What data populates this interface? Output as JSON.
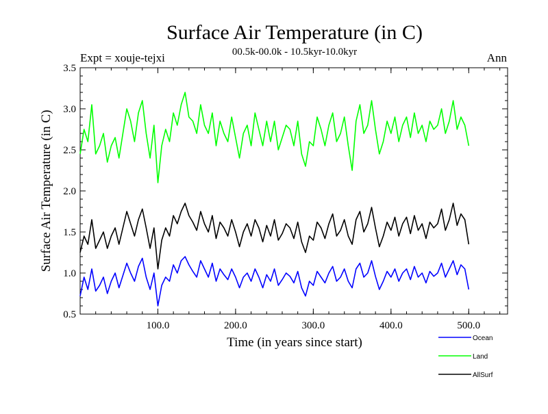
{
  "chart_data": {
    "type": "line",
    "title": "Surface Air Temperature (in C)",
    "subtitle": "00.5k-00.0k - 10.5kyr-10.0kyr",
    "experiment": "Expt = xouje-tejxi",
    "season": "Ann",
    "xlabel": "Time (in years since start)",
    "ylabel": "Surface Air Temperature (in C)",
    "xlim": [
      0,
      550
    ],
    "ylim": [
      0.5,
      3.5
    ],
    "xticks": [
      100,
      200,
      300,
      400,
      500
    ],
    "xtick_labels": [
      "100.0",
      "200.0",
      "300.0",
      "400.0",
      "500.0"
    ],
    "yticks": [
      0.5,
      1.0,
      1.5,
      2.0,
      2.5,
      3.0,
      3.5
    ],
    "ytick_labels": [
      "0.5",
      "1.0",
      "1.5",
      "2.0",
      "2.5",
      "3.0",
      "3.5"
    ],
    "legend_position": "bottom-right",
    "series": [
      {
        "name": "Ocean",
        "color": "#0000ff",
        "x": [
          0,
          5,
          10,
          15,
          20,
          25,
          30,
          35,
          40,
          45,
          50,
          55,
          60,
          65,
          70,
          75,
          80,
          85,
          90,
          95,
          100,
          105,
          110,
          115,
          120,
          125,
          130,
          135,
          140,
          145,
          150,
          155,
          160,
          165,
          170,
          175,
          180,
          185,
          190,
          195,
          200,
          205,
          210,
          215,
          220,
          225,
          230,
          235,
          240,
          245,
          250,
          255,
          260,
          265,
          270,
          275,
          280,
          285,
          290,
          295,
          300,
          305,
          310,
          315,
          320,
          325,
          330,
          335,
          340,
          345,
          350,
          355,
          360,
          365,
          370,
          375,
          380,
          385,
          390,
          395,
          400,
          405,
          410,
          415,
          420,
          425,
          430,
          435,
          440,
          445,
          450,
          455,
          460,
          465,
          470,
          475,
          480,
          485,
          490,
          495,
          500
        ],
        "values": [
          0.72,
          0.95,
          0.8,
          1.05,
          0.78,
          0.85,
          0.95,
          0.75,
          0.9,
          1.0,
          0.82,
          0.97,
          1.12,
          1.0,
          0.9,
          1.08,
          1.18,
          0.95,
          0.8,
          1.0,
          0.6,
          0.85,
          0.95,
          0.9,
          1.1,
          1.0,
          1.15,
          1.2,
          1.1,
          1.02,
          0.95,
          1.15,
          1.05,
          0.95,
          1.12,
          0.9,
          1.05,
          0.98,
          0.92,
          1.05,
          0.95,
          0.82,
          0.95,
          1.0,
          0.9,
          1.05,
          0.95,
          0.82,
          0.98,
          0.9,
          1.05,
          0.85,
          0.92,
          1.0,
          0.96,
          0.88,
          1.02,
          0.82,
          0.72,
          0.9,
          0.85,
          1.02,
          0.95,
          0.88,
          1.0,
          1.08,
          0.9,
          0.95,
          1.05,
          0.9,
          0.82,
          1.05,
          1.12,
          0.95,
          1.0,
          1.15,
          0.96,
          0.8,
          0.9,
          1.02,
          0.95,
          1.05,
          0.9,
          1.0,
          1.05,
          0.92,
          1.08,
          0.95,
          1.0,
          0.88,
          1.02,
          0.96,
          1.0,
          1.12,
          0.95,
          1.05,
          1.15,
          0.98,
          1.1,
          1.05,
          0.8
        ]
      },
      {
        "name": "Land",
        "color": "#00ff00",
        "x": [
          0,
          5,
          10,
          15,
          20,
          25,
          30,
          35,
          40,
          45,
          50,
          55,
          60,
          65,
          70,
          75,
          80,
          85,
          90,
          95,
          100,
          105,
          110,
          115,
          120,
          125,
          130,
          135,
          140,
          145,
          150,
          155,
          160,
          165,
          170,
          175,
          180,
          185,
          190,
          195,
          200,
          205,
          210,
          215,
          220,
          225,
          230,
          235,
          240,
          245,
          250,
          255,
          260,
          265,
          270,
          275,
          280,
          285,
          290,
          295,
          300,
          305,
          310,
          315,
          320,
          325,
          330,
          335,
          340,
          345,
          350,
          355,
          360,
          365,
          370,
          375,
          380,
          385,
          390,
          395,
          400,
          405,
          410,
          415,
          420,
          425,
          430,
          435,
          440,
          445,
          450,
          455,
          460,
          465,
          470,
          475,
          480,
          485,
          490,
          495,
          500
        ],
        "values": [
          2.45,
          2.75,
          2.6,
          3.05,
          2.45,
          2.55,
          2.7,
          2.35,
          2.55,
          2.65,
          2.4,
          2.7,
          3.0,
          2.85,
          2.6,
          2.95,
          3.1,
          2.7,
          2.4,
          2.8,
          2.1,
          2.55,
          2.75,
          2.6,
          2.95,
          2.8,
          3.05,
          3.2,
          2.9,
          2.85,
          2.7,
          3.05,
          2.8,
          2.7,
          2.95,
          2.55,
          2.85,
          2.7,
          2.6,
          2.9,
          2.65,
          2.4,
          2.7,
          2.8,
          2.55,
          2.95,
          2.75,
          2.55,
          2.85,
          2.6,
          2.85,
          2.5,
          2.65,
          2.8,
          2.75,
          2.55,
          2.85,
          2.45,
          2.3,
          2.6,
          2.55,
          2.9,
          2.75,
          2.55,
          2.8,
          2.95,
          2.6,
          2.7,
          2.9,
          2.55,
          2.25,
          2.85,
          3.05,
          2.7,
          2.8,
          3.1,
          2.75,
          2.45,
          2.6,
          2.85,
          2.7,
          2.9,
          2.6,
          2.8,
          2.9,
          2.65,
          2.95,
          2.7,
          2.8,
          2.6,
          2.85,
          2.75,
          2.8,
          3.0,
          2.7,
          2.85,
          3.1,
          2.75,
          2.9,
          2.8,
          2.55
        ]
      },
      {
        "name": "AllSurf",
        "color": "#000000",
        "x": [
          0,
          5,
          10,
          15,
          20,
          25,
          30,
          35,
          40,
          45,
          50,
          55,
          60,
          65,
          70,
          75,
          80,
          85,
          90,
          95,
          100,
          105,
          110,
          115,
          120,
          125,
          130,
          135,
          140,
          145,
          150,
          155,
          160,
          165,
          170,
          175,
          180,
          185,
          190,
          195,
          200,
          205,
          210,
          215,
          220,
          225,
          230,
          235,
          240,
          245,
          250,
          255,
          260,
          265,
          270,
          275,
          280,
          285,
          290,
          295,
          300,
          305,
          310,
          315,
          320,
          325,
          330,
          335,
          340,
          345,
          350,
          355,
          360,
          365,
          370,
          375,
          380,
          385,
          390,
          395,
          400,
          405,
          410,
          415,
          420,
          425,
          430,
          435,
          440,
          445,
          450,
          455,
          460,
          465,
          470,
          475,
          480,
          485,
          490,
          495,
          500
        ],
        "values": [
          1.25,
          1.45,
          1.35,
          1.65,
          1.3,
          1.4,
          1.5,
          1.3,
          1.45,
          1.55,
          1.35,
          1.55,
          1.75,
          1.6,
          1.45,
          1.65,
          1.78,
          1.55,
          1.3,
          1.55,
          1.05,
          1.4,
          1.55,
          1.45,
          1.7,
          1.6,
          1.75,
          1.85,
          1.7,
          1.62,
          1.52,
          1.75,
          1.6,
          1.5,
          1.7,
          1.42,
          1.62,
          1.55,
          1.45,
          1.65,
          1.5,
          1.32,
          1.5,
          1.6,
          1.45,
          1.65,
          1.55,
          1.38,
          1.58,
          1.45,
          1.65,
          1.4,
          1.48,
          1.6,
          1.55,
          1.42,
          1.62,
          1.38,
          1.25,
          1.45,
          1.4,
          1.62,
          1.55,
          1.42,
          1.6,
          1.72,
          1.45,
          1.52,
          1.65,
          1.45,
          1.35,
          1.65,
          1.75,
          1.5,
          1.6,
          1.8,
          1.55,
          1.32,
          1.45,
          1.62,
          1.52,
          1.68,
          1.45,
          1.6,
          1.68,
          1.48,
          1.7,
          1.52,
          1.6,
          1.42,
          1.62,
          1.55,
          1.6,
          1.78,
          1.52,
          1.65,
          1.85,
          1.58,
          1.72,
          1.65,
          1.35
        ]
      }
    ]
  }
}
